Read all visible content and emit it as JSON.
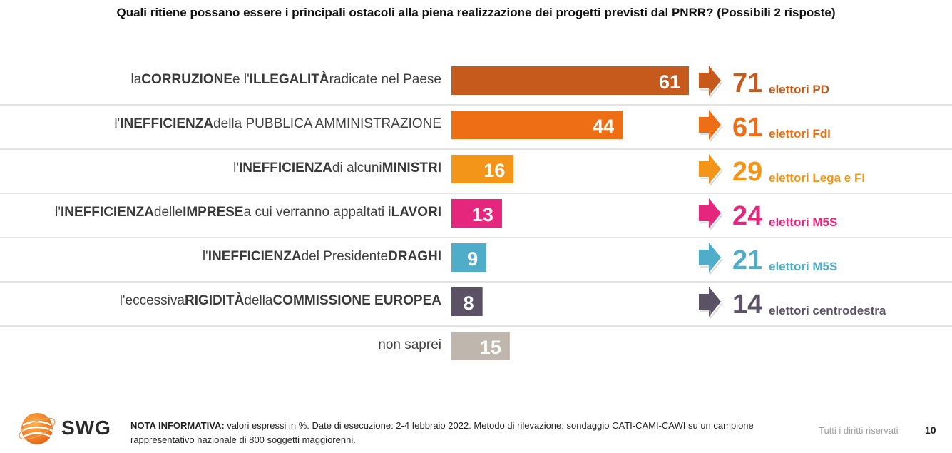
{
  "page_number": "10",
  "rights": "Tutti i diritti riservati",
  "logo_text": "SWG",
  "note": {
    "bold": "NOTA INFORMATIVA:",
    "text": " valori espressi in %. Date di esecuzione: 2-4 febbraio 2022. Metodo di rilevazione: sondaggio CATI-CAMI-CAWI su un campione rappresentativo nazionale di 800 soggetti maggiorenni."
  },
  "chart_data": {
    "type": "bar",
    "title": "Quali ritiene possano essere i principali ostacoli alla piena realizzazione dei progetti previsti dal PNRR? (Possibili 2 risposte)",
    "orientation": "horizontal",
    "categories": [
      "la CORRUZIONE e l'ILLEGALITÀ radicate nel Paese",
      "l'INEFFICIENZA della PUBBLICA AMMINISTRAZIONE",
      "l'INEFFICIENZA di alcuni MINISTRI",
      "l'INEFFICIENZA delle IMPRESE a cui verranno appaltati i LAVORI",
      "l'INEFFICIENZA del Presidente DRAGHI",
      "l'eccessiva RIGIDITÀ della COMMISSIONE EUROPEA",
      "non saprei"
    ],
    "label_parts": [
      [
        {
          "t": "la ",
          "b": false
        },
        {
          "t": "CORRUZIONE",
          "b": true
        },
        {
          "t": " e l'",
          "b": false
        },
        {
          "t": "ILLEGALITÀ",
          "b": true
        },
        {
          "t": " radicate nel Paese",
          "b": false
        }
      ],
      [
        {
          "t": "l'",
          "b": false
        },
        {
          "t": "INEFFICIENZA",
          "b": true
        },
        {
          "t": " della PUBBLICA AMMINISTRAZIONE",
          "b": false
        }
      ],
      [
        {
          "t": "l'",
          "b": false
        },
        {
          "t": "INEFFICIENZA",
          "b": true
        },
        {
          "t": " di alcuni ",
          "b": false
        },
        {
          "t": "MINISTRI",
          "b": true
        }
      ],
      [
        {
          "t": "l'",
          "b": false
        },
        {
          "t": "INEFFICIENZA",
          "b": true
        },
        {
          "t": " delle ",
          "b": false
        },
        {
          "t": "IMPRESE",
          "b": true
        },
        {
          "t": " a cui verranno appaltati i ",
          "b": false
        },
        {
          "t": "LAVORI",
          "b": true
        }
      ],
      [
        {
          "t": "l'",
          "b": false
        },
        {
          "t": "INEFFICIENZA",
          "b": true
        },
        {
          "t": " del Presidente ",
          "b": false
        },
        {
          "t": "DRAGHI",
          "b": true
        }
      ],
      [
        {
          "t": "l'eccessiva ",
          "b": false
        },
        {
          "t": "RIGIDITÀ",
          "b": true
        },
        {
          "t": " della ",
          "b": false
        },
        {
          "t": "COMMISSIONE EUROPEA",
          "b": true
        }
      ],
      [
        {
          "t": "non saprei",
          "b": false
        }
      ]
    ],
    "values": [
      61,
      44,
      16,
      13,
      9,
      8,
      15
    ],
    "unit": "%",
    "colors": [
      "#c55a1c",
      "#ee6e15",
      "#f39519",
      "#e5267d",
      "#4fadc9",
      "#5c5266",
      "#bfb6ae"
    ],
    "xlim": [
      0,
      61
    ],
    "callouts": [
      {
        "value": 71,
        "label": "elettori PD",
        "color": "#c55a1c"
      },
      {
        "value": 61,
        "label": "elettori FdI",
        "color": "#ee6e15"
      },
      {
        "value": 29,
        "label": "elettori Lega e FI",
        "color": "#f39519"
      },
      {
        "value": 24,
        "label": "elettori M5S",
        "color": "#e5267d"
      },
      {
        "value": 21,
        "label": "elettori M5S",
        "color": "#4fadc9"
      },
      {
        "value": 14,
        "label": "elettori centrodestra",
        "color": "#5c5266"
      },
      null
    ]
  }
}
